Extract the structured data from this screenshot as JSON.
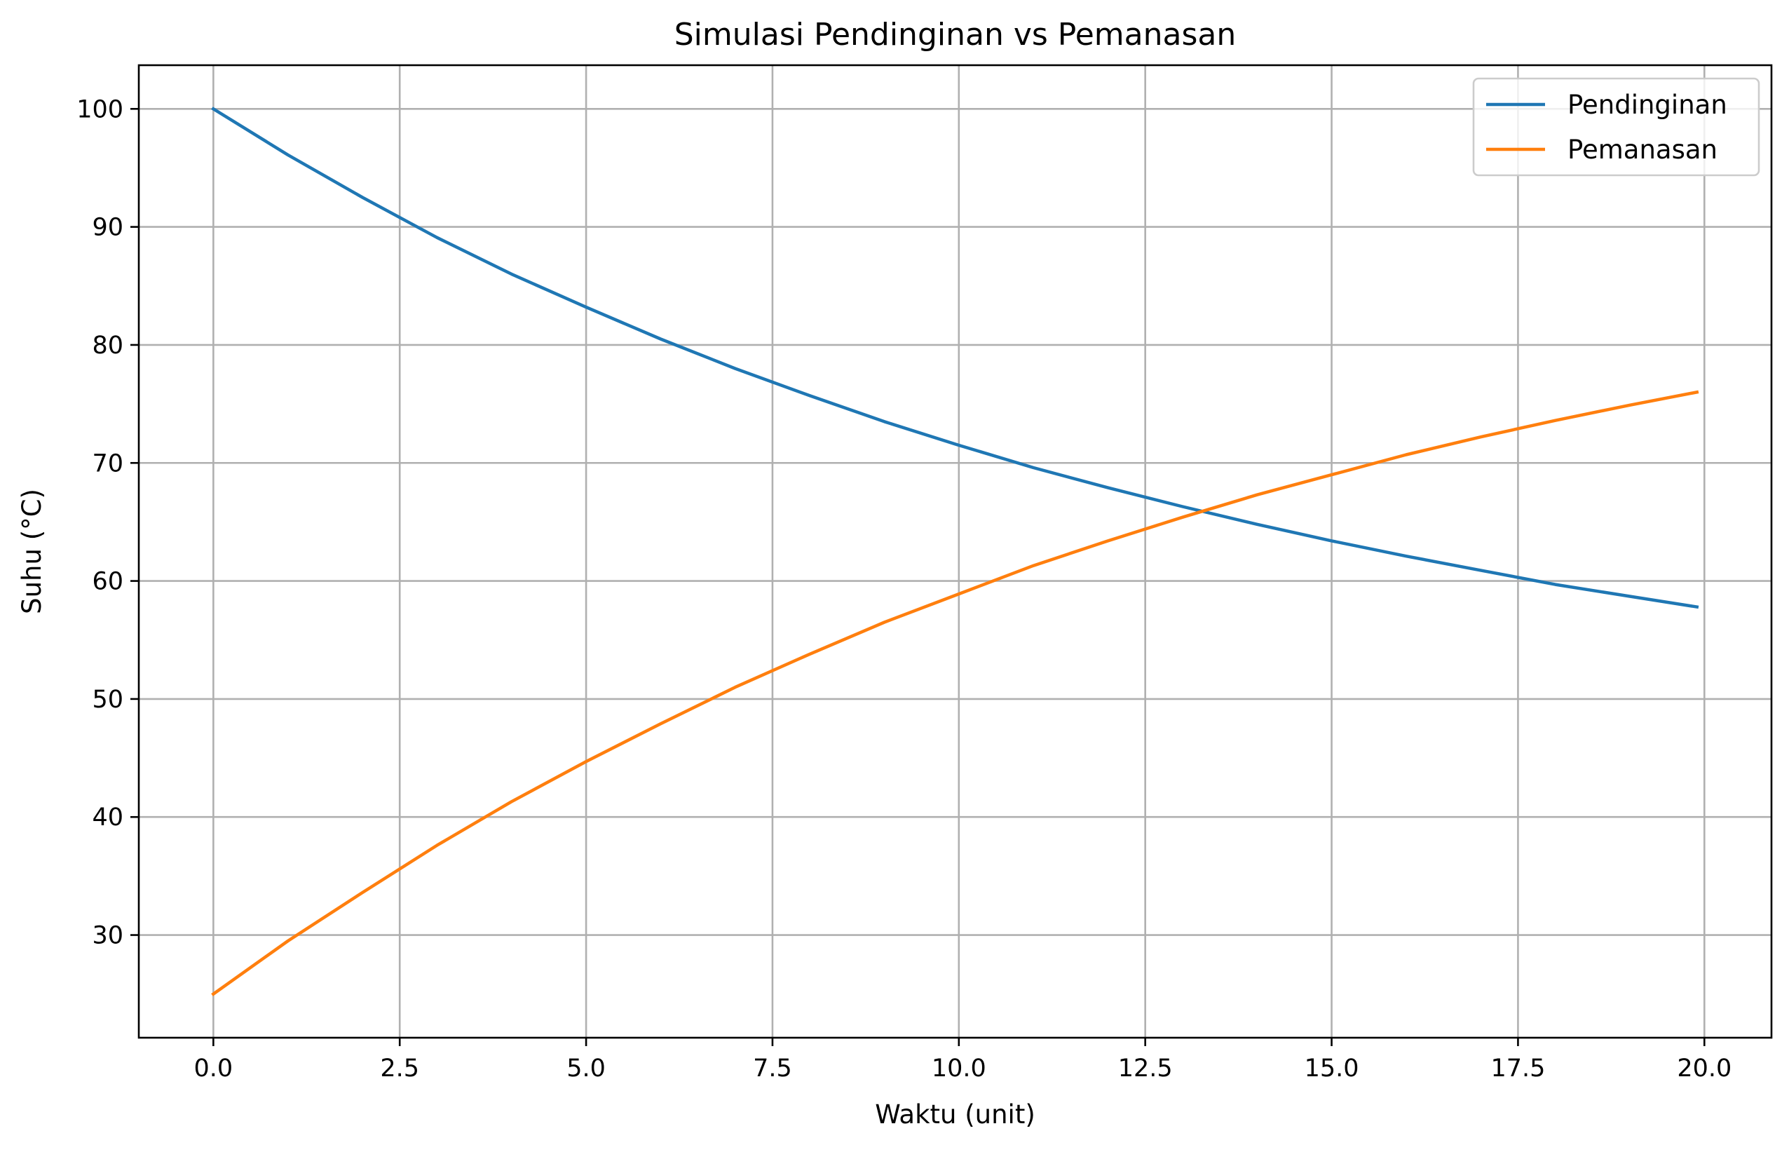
{
  "chart_data": {
    "type": "line",
    "title": "Simulasi Pendinginan vs Pemanasan",
    "xlabel": "Waktu (unit)",
    "ylabel": "Suhu (°C)",
    "xlim": [
      -1.0,
      20.9
    ],
    "ylim": [
      21.3,
      103.7
    ],
    "xticks": [
      0.0,
      2.5,
      5.0,
      7.5,
      10.0,
      12.5,
      15.0,
      17.5,
      20.0
    ],
    "xtick_labels": [
      "0.0",
      "2.5",
      "5.0",
      "7.5",
      "10.0",
      "12.5",
      "15.0",
      "17.5",
      "20.0"
    ],
    "yticks": [
      30,
      40,
      50,
      60,
      70,
      80,
      90,
      100
    ],
    "ytick_labels": [
      "30",
      "40",
      "50",
      "60",
      "70",
      "80",
      "90",
      "100"
    ],
    "grid": true,
    "legend_position": "top-right",
    "x": [
      0,
      1,
      2,
      3,
      4,
      5,
      6,
      7,
      8,
      9,
      10,
      11,
      12,
      13,
      14,
      15,
      16,
      17,
      18,
      19,
      19.9
    ],
    "series": [
      {
        "name": "Pendinginan",
        "color": "#1f77b4",
        "values": [
          100.0,
          96.1,
          92.5,
          89.1,
          86.0,
          83.2,
          80.5,
          78.0,
          75.7,
          73.5,
          71.5,
          69.6,
          67.9,
          66.3,
          64.8,
          63.4,
          62.1,
          60.9,
          59.7,
          58.7,
          57.8
        ]
      },
      {
        "name": "Pemanasan",
        "color": "#ff7f0e",
        "values": [
          25.0,
          29.5,
          33.6,
          37.6,
          41.3,
          44.7,
          47.9,
          51.0,
          53.8,
          56.5,
          58.9,
          61.3,
          63.4,
          65.4,
          67.3,
          69.0,
          70.7,
          72.2,
          73.6,
          74.9,
          76.0
        ]
      }
    ]
  }
}
